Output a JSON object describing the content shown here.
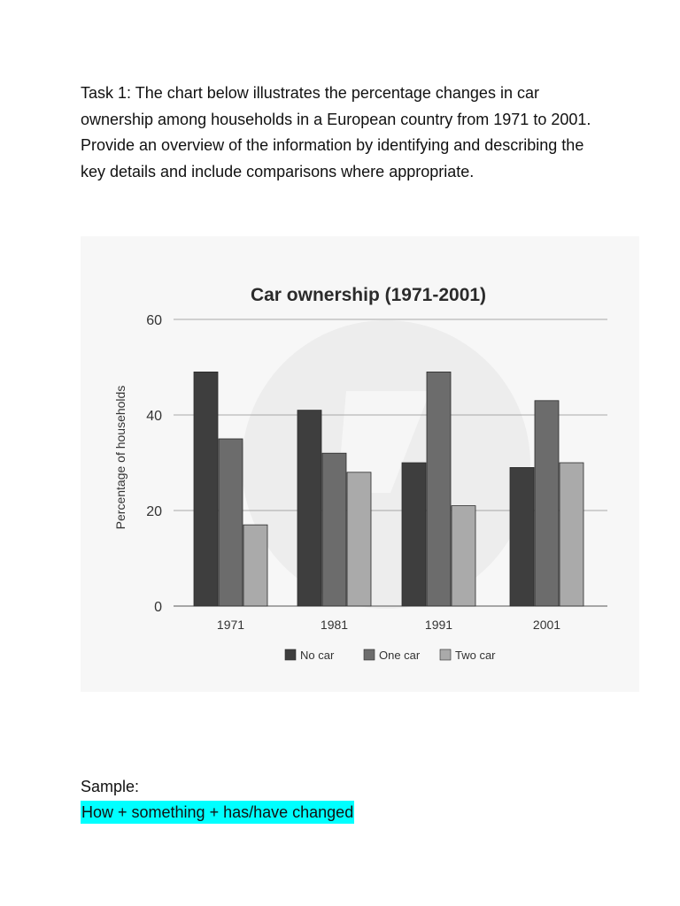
{
  "document": {
    "task_text": "Task 1: The chart below illustrates the percentage changes in car ownership among households in a European country from 1971 to 2001. Provide an overview of the information by identifying and describing the key details and include comparisons where appropriate.",
    "sample_label": "Sample:",
    "highlight_text": "How + something + has/have changed",
    "highlight_color": "#00ffff"
  },
  "chart_data": {
    "type": "bar",
    "title": "Car ownership (1971-2001)",
    "xlabel": "",
    "ylabel": "Percentage of households",
    "categories": [
      "1971",
      "1981",
      "1991",
      "2001"
    ],
    "series": [
      {
        "name": "No car",
        "values": [
          49,
          41,
          30,
          29
        ],
        "color": "#3e3e3e"
      },
      {
        "name": "One car",
        "values": [
          35,
          32,
          49,
          43
        ],
        "color": "#6c6c6c"
      },
      {
        "name": "Two car",
        "values": [
          17,
          28,
          21,
          30
        ],
        "color": "#aaaaaa"
      }
    ],
    "ylim": [
      0,
      60
    ],
    "yticks": [
      "0",
      "20",
      "40",
      "60"
    ],
    "grid": true,
    "legend_position": "bottom"
  }
}
